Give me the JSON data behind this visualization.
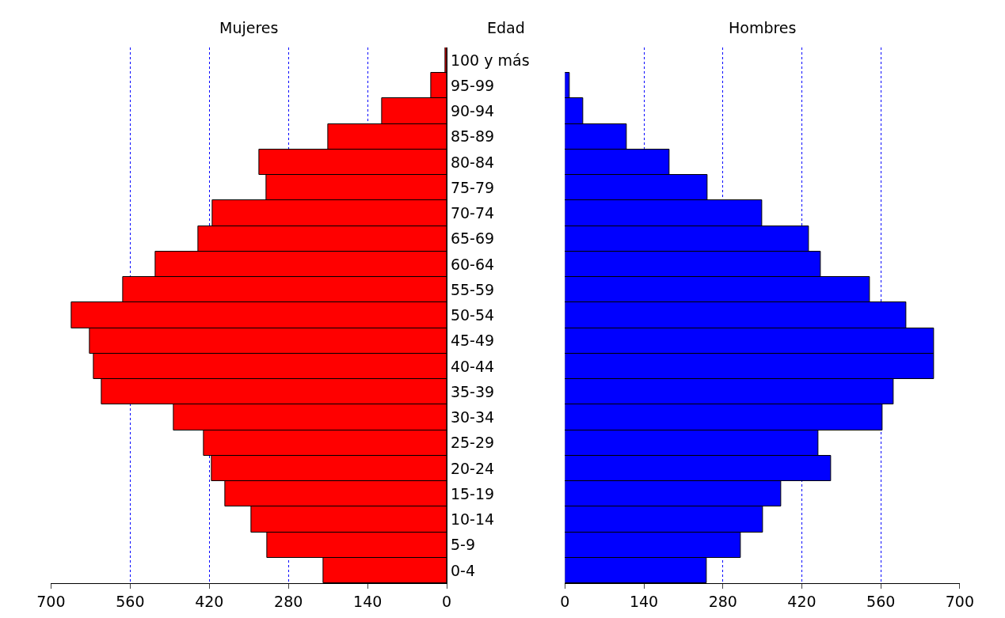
{
  "chart_data": [
    {
      "type": "bar",
      "orientation": "horizontal",
      "title": "Mujeres",
      "ylabel": "Edad",
      "categories": [
        "100 y más",
        "95-99",
        "90-94",
        "85-89",
        "80-84",
        "75-79",
        "70-74",
        "65-69",
        "60-64",
        "55-59",
        "50-54",
        "45-49",
        "40-44",
        "35-39",
        "30-34",
        "25-29",
        "20-24",
        "15-19",
        "10-14",
        "5-9",
        "0-4"
      ],
      "values": [
        2,
        28,
        114,
        210,
        331,
        319,
        414,
        439,
        515,
        573,
        663,
        631,
        625,
        610,
        483,
        430,
        416,
        392,
        345,
        317,
        218
      ],
      "color": "#ff0000",
      "xlim": [
        700,
        0
      ],
      "xticks": [
        700,
        560,
        420,
        280,
        140,
        0
      ],
      "grid": "x"
    },
    {
      "type": "bar",
      "orientation": "horizontal",
      "title": "Hombres",
      "categories": [
        "100 y más",
        "95-99",
        "90-94",
        "85-89",
        "80-84",
        "75-79",
        "70-74",
        "65-69",
        "60-64",
        "55-59",
        "50-54",
        "45-49",
        "40-44",
        "35-39",
        "30-34",
        "25-29",
        "20-24",
        "15-19",
        "10-14",
        "5-9",
        "0-4"
      ],
      "values": [
        null,
        8,
        32,
        110,
        186,
        253,
        349,
        432,
        453,
        540,
        605,
        654,
        654,
        583,
        563,
        450,
        472,
        383,
        351,
        312,
        251
      ],
      "color": "#0000ff",
      "xlim": [
        0,
        700
      ],
      "xticks": [
        0,
        140,
        280,
        420,
        560,
        700
      ],
      "grid": "x",
      "tick_labels": "x"
    }
  ]
}
